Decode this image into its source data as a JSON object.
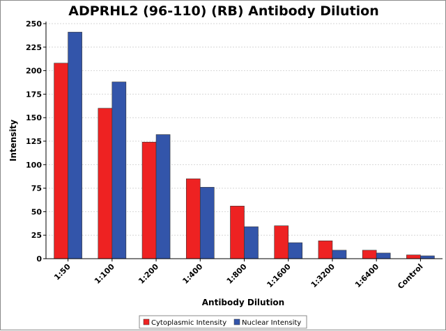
{
  "chart_data": {
    "type": "bar",
    "title": "ADPRHL2 (96-110) (RB) Antibody Dilution",
    "xlabel": "Antibody Dilution",
    "ylabel": "Intensity",
    "ylim": [
      0,
      250
    ],
    "yticks": [
      0,
      25,
      50,
      75,
      100,
      125,
      150,
      175,
      200,
      225,
      250
    ],
    "grid": true,
    "legend_position": "bottom-center",
    "categories": [
      "1:50",
      "1:100",
      "1:200",
      "1:400",
      "1:800",
      "1:1600",
      "1:3200",
      "1:6400",
      "Control"
    ],
    "series": [
      {
        "name": "Cytoplasmic Intensity",
        "color": "#ee2222",
        "values": [
          208,
          160,
          124,
          85,
          56,
          35,
          19,
          9,
          4
        ]
      },
      {
        "name": "Nuclear Intensity",
        "color": "#3355aa",
        "values": [
          241,
          188,
          132,
          76,
          34,
          17,
          9,
          6,
          3
        ]
      }
    ]
  }
}
